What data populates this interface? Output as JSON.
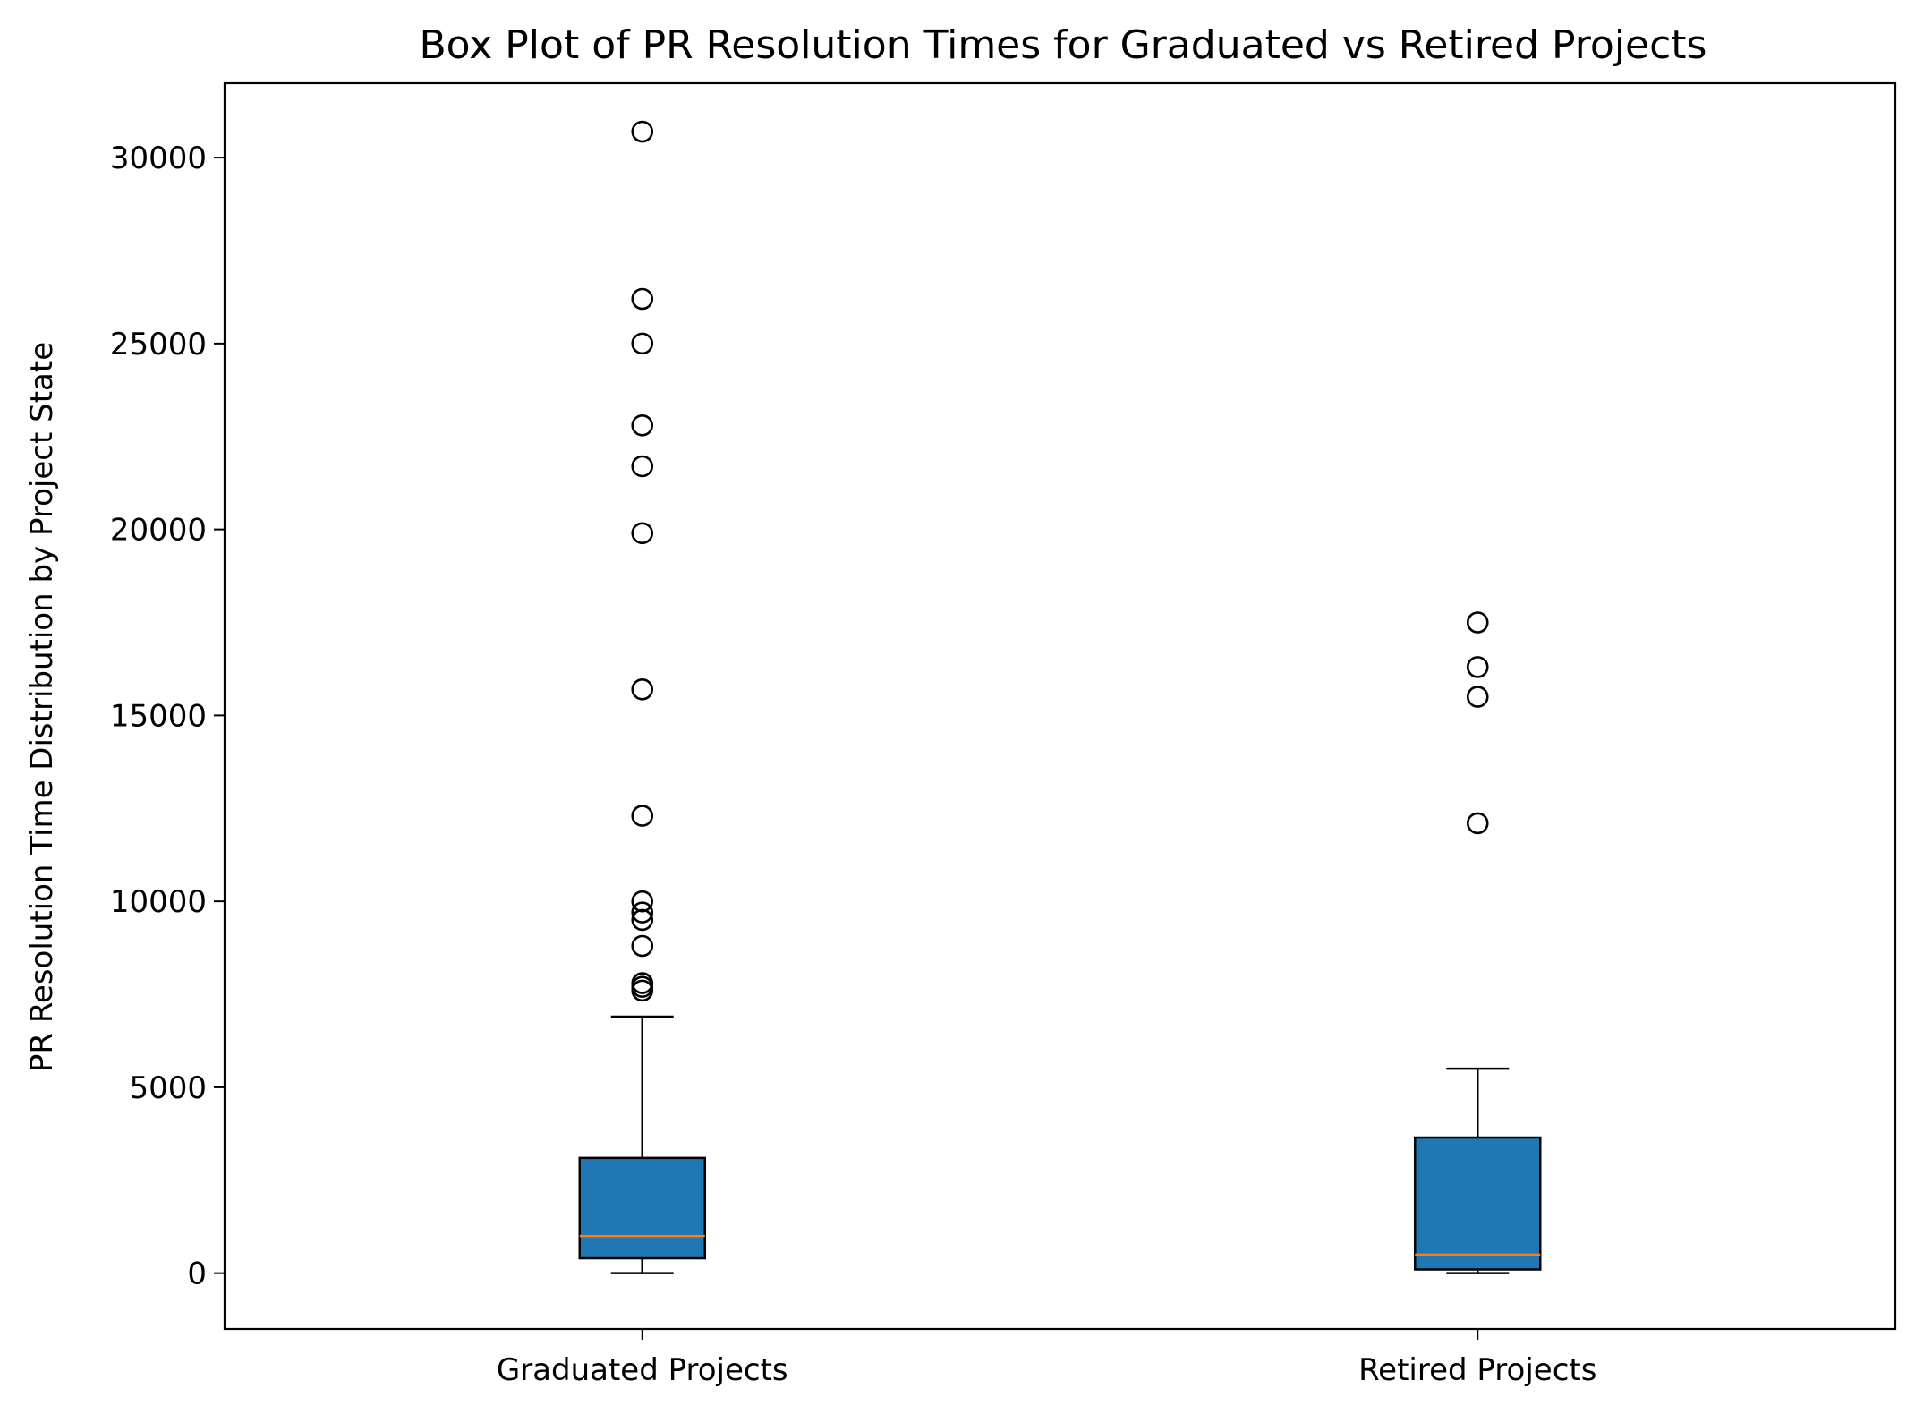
{
  "chart_data": {
    "type": "box",
    "title": "Box Plot of PR Resolution Times for Graduated vs Retired Projects",
    "xlabel": "",
    "ylabel": "PR Resolution Time Distribution by Project State",
    "ylim": [
      -1500,
      32000
    ],
    "yticks": [
      0,
      5000,
      10000,
      15000,
      20000,
      25000,
      30000
    ],
    "grid": false,
    "box_color": "#1f77b4",
    "median_color": "#ff7f0e",
    "categories": [
      "Graduated Projects",
      "Retired Projects"
    ],
    "series": [
      {
        "category": "Graduated Projects",
        "whisker_low": 0,
        "q1": 400,
        "median": 1000,
        "q3": 3100,
        "whisker_high": 6900,
        "outliers": [
          30700,
          26200,
          25000,
          22800,
          21700,
          19900,
          15700,
          12300,
          10000,
          9700,
          9500,
          8800,
          7800,
          7700,
          7600
        ]
      },
      {
        "category": "Retired Projects",
        "whisker_low": 0,
        "q1": 100,
        "median": 500,
        "q3": 3650,
        "whisker_high": 5500,
        "outliers": [
          17500,
          16300,
          15500,
          12100
        ]
      }
    ]
  }
}
